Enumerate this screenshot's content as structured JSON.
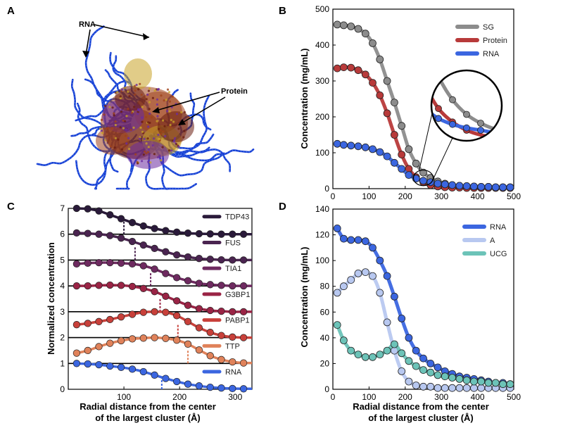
{
  "panel_letters": [
    "A",
    "B",
    "C",
    "D"
  ],
  "panel_a": {
    "annotations": [
      "RNA",
      "Protein"
    ],
    "colors": {
      "rna": "#1a3fd6",
      "rna_light": "#58a8e8",
      "protein": "#a0421a",
      "protein_dark": "#6a1e10",
      "gold": "#c9a227",
      "purple": "#6b2ca0"
    }
  },
  "chart_data": [
    {
      "id": "B",
      "type": "scatter",
      "xlim": [
        0,
        500
      ],
      "ylim": [
        0,
        500
      ],
      "xticks": [
        0,
        100,
        200,
        300,
        400,
        500
      ],
      "yticks": [
        0,
        100,
        200,
        300,
        400,
        500
      ],
      "xlabel": "",
      "ylabel": "Concentration (mg/mL)",
      "legend": [
        "SG",
        "Protein",
        "RNA"
      ],
      "series": [
        {
          "name": "SG",
          "color": "#8c8c8c",
          "x": [
            12,
            30,
            50,
            70,
            90,
            110,
            130,
            150,
            170,
            190,
            210,
            230,
            250,
            270,
            290,
            310,
            330,
            350,
            370,
            390,
            410,
            430,
            450,
            470,
            490
          ],
          "y": [
            457,
            455,
            452,
            445,
            432,
            405,
            360,
            300,
            240,
            175,
            110,
            70,
            45,
            30,
            20,
            14,
            10,
            8,
            7,
            6,
            5,
            5,
            4,
            4,
            4
          ]
        },
        {
          "name": "Protein",
          "color": "#b83a3a",
          "x": [
            12,
            30,
            50,
            70,
            90,
            110,
            130,
            150,
            170,
            190,
            210,
            230,
            250,
            270,
            290,
            310,
            330,
            350,
            370,
            390,
            410,
            430,
            450,
            470,
            490
          ],
          "y": [
            335,
            338,
            337,
            330,
            318,
            295,
            260,
            210,
            150,
            95,
            55,
            32,
            18,
            10,
            6,
            4,
            3,
            3,
            2,
            2,
            2,
            2,
            2,
            2,
            2
          ]
        },
        {
          "name": "RNA",
          "color": "#3b66e0",
          "x": [
            12,
            30,
            50,
            70,
            90,
            110,
            130,
            150,
            170,
            190,
            210,
            230,
            250,
            270,
            290,
            310,
            330,
            350,
            370,
            390,
            410,
            430,
            450,
            470,
            490
          ],
          "y": [
            125,
            122,
            120,
            118,
            115,
            110,
            102,
            90,
            72,
            55,
            38,
            28,
            22,
            18,
            14,
            12,
            10,
            8,
            7,
            6,
            5,
            5,
            4,
            4,
            4
          ]
        }
      ],
      "inset": "zoom"
    },
    {
      "id": "C",
      "type": "line",
      "xlim": [
        0,
        330
      ],
      "ylim": [
        0,
        7
      ],
      "xticks": [
        100,
        200,
        300
      ],
      "yticks": [
        0,
        1,
        2,
        3,
        4,
        5,
        6,
        7
      ],
      "xlabel": [
        "Radial distance from the center",
        "of the largest cluster (Å)"
      ],
      "ylabel": "Normalized concentration",
      "x": [
        15,
        35,
        55,
        75,
        95,
        115,
        135,
        155,
        175,
        195,
        215,
        235,
        255,
        275,
        295,
        315
      ],
      "series": [
        {
          "name": "TDP43",
          "color": "#2a1a3a",
          "offset": 6,
          "marker_x": 100,
          "y": [
            7.0,
            6.98,
            6.9,
            6.75,
            6.6,
            6.45,
            6.32,
            6.22,
            6.14,
            6.08,
            6.04,
            6.02,
            6.01,
            6.0,
            6.0,
            6.0
          ]
        },
        {
          "name": "FUS",
          "color": "#4a2450",
          "offset": 5,
          "marker_x": 120,
          "y": [
            6.05,
            6.03,
            6.0,
            5.95,
            5.85,
            5.72,
            5.58,
            5.45,
            5.32,
            5.2,
            5.12,
            5.06,
            5.03,
            5.01,
            5.0,
            5.0
          ]
        },
        {
          "name": "TIA1",
          "color": "#6e2a60",
          "offset": 4,
          "marker_x": 148,
          "y": [
            4.85,
            4.88,
            4.9,
            4.9,
            4.88,
            4.85,
            4.78,
            4.65,
            4.48,
            4.32,
            4.2,
            4.1,
            4.05,
            4.02,
            4.0,
            4.0
          ]
        },
        {
          "name": "G3BP1",
          "color": "#9a2445",
          "offset": 3,
          "marker_x": 165,
          "y": [
            4.0,
            4.0,
            4.02,
            4.03,
            4.02,
            3.98,
            3.9,
            3.78,
            3.6,
            3.42,
            3.25,
            3.12,
            3.05,
            3.02,
            3.0,
            3.0
          ]
        },
        {
          "name": "PABP1",
          "color": "#c8403a",
          "offset": 2,
          "marker_x": 197,
          "y": [
            2.5,
            2.55,
            2.62,
            2.7,
            2.8,
            2.9,
            2.98,
            3.0,
            2.98,
            2.85,
            2.62,
            2.38,
            2.2,
            2.08,
            2.02,
            2.0
          ]
        },
        {
          "name": "TTP",
          "color": "#e0825a",
          "offset": 1,
          "marker_x": 215,
          "y": [
            1.4,
            1.5,
            1.65,
            1.78,
            1.88,
            1.95,
            1.98,
            2.0,
            1.97,
            1.9,
            1.75,
            1.52,
            1.3,
            1.15,
            1.06,
            1.02
          ]
        },
        {
          "name": "RNA",
          "color": "#3b66e0",
          "offset": 0,
          "marker_x": 168,
          "y": [
            1.0,
            0.98,
            0.95,
            0.9,
            0.85,
            0.78,
            0.68,
            0.55,
            0.42,
            0.3,
            0.2,
            0.13,
            0.08,
            0.05,
            0.03,
            0.02
          ]
        }
      ]
    },
    {
      "id": "D",
      "type": "scatter",
      "xlim": [
        0,
        500
      ],
      "ylim": [
        0,
        140
      ],
      "xticks": [
        0,
        100,
        200,
        300,
        400,
        500
      ],
      "yticks": [
        0,
        20,
        40,
        60,
        80,
        100,
        120,
        140
      ],
      "xlabel": [
        "Radial distance from the center",
        "of the largest cluster (Å)"
      ],
      "ylabel": "Concentration (mg/mL)",
      "legend": [
        "RNA",
        "A",
        "UCG"
      ],
      "series": [
        {
          "name": "RNA",
          "color": "#3b66e0",
          "x": [
            12,
            30,
            50,
            70,
            90,
            110,
            130,
            150,
            170,
            190,
            210,
            230,
            250,
            270,
            290,
            310,
            330,
            350,
            370,
            390,
            410,
            430,
            450,
            470,
            490
          ],
          "y": [
            125,
            117,
            116,
            116,
            115,
            110,
            100,
            88,
            72,
            55,
            40,
            30,
            24,
            20,
            17,
            14,
            12,
            10,
            9,
            8,
            7,
            6,
            5,
            5,
            4
          ]
        },
        {
          "name": "A",
          "color": "#b8c8f0",
          "x": [
            12,
            30,
            50,
            70,
            90,
            110,
            130,
            150,
            170,
            190,
            210,
            230,
            250,
            270,
            290,
            310,
            330,
            350,
            370,
            390,
            410,
            430,
            450,
            470,
            490
          ],
          "y": [
            75,
            80,
            85,
            90,
            91,
            88,
            75,
            52,
            30,
            14,
            6,
            3,
            2,
            2,
            1,
            1,
            1,
            1,
            1,
            1,
            1,
            1,
            1,
            1,
            1
          ]
        },
        {
          "name": "UCG",
          "color": "#6cc3b8",
          "x": [
            12,
            30,
            50,
            70,
            90,
            110,
            130,
            150,
            170,
            190,
            210,
            230,
            250,
            270,
            290,
            310,
            330,
            350,
            370,
            390,
            410,
            430,
            450,
            470,
            490
          ],
          "y": [
            50,
            38,
            30,
            27,
            25,
            25,
            27,
            30,
            35,
            28,
            22,
            18,
            15,
            13,
            11,
            10,
            9,
            8,
            7,
            6,
            6,
            5,
            5,
            4,
            4
          ]
        }
      ]
    }
  ]
}
